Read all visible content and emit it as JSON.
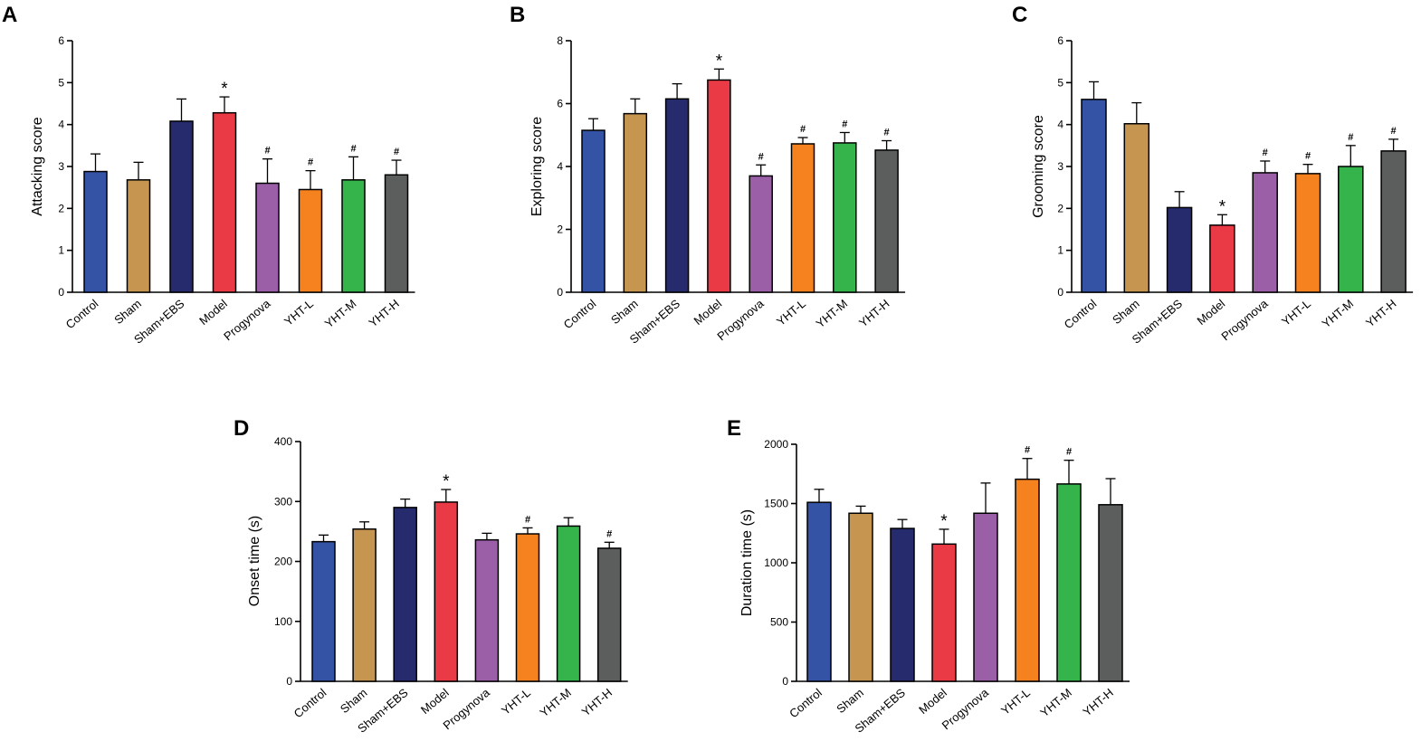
{
  "colors": [
    "#3553a5",
    "#c69650",
    "#262b6d",
    "#ea3a45",
    "#9b5fa8",
    "#f5821f",
    "#34b44b",
    "#5b5e5d"
  ],
  "chart_data": [
    {
      "id": "A",
      "panel_label": "A",
      "type": "bar",
      "ylabel": "Attacking score",
      "categories": [
        "Control",
        "Sham",
        "Sham+EBS",
        "Model",
        "Progynova",
        "YHT-L",
        "YHT-M",
        "YHT-H"
      ],
      "values": [
        2.88,
        2.68,
        4.08,
        4.28,
        2.6,
        2.45,
        2.68,
        2.8
      ],
      "errors": [
        0.42,
        0.42,
        0.53,
        0.38,
        0.58,
        0.45,
        0.55,
        0.35
      ],
      "significance": [
        "",
        "",
        "",
        "*",
        "#",
        "#",
        "#",
        "#"
      ],
      "ylim": [
        0,
        6
      ],
      "yticks": [
        "0",
        "1",
        "2",
        "3",
        "4",
        "5",
        "6"
      ]
    },
    {
      "id": "B",
      "panel_label": "B",
      "type": "bar",
      "ylabel": "Exploring score",
      "categories": [
        "Control",
        "Sham",
        "Sham+EBS",
        "Model",
        "Progynova",
        "YHT-L",
        "YHT-M",
        "YHT-H"
      ],
      "values": [
        5.15,
        5.68,
        6.15,
        6.75,
        3.7,
        4.72,
        4.75,
        4.52
      ],
      "errors": [
        0.37,
        0.47,
        0.48,
        0.35,
        0.35,
        0.2,
        0.33,
        0.3
      ],
      "significance": [
        "",
        "",
        "",
        "*",
        "#",
        "#",
        "#",
        "#"
      ],
      "ylim": [
        0,
        8
      ],
      "yticks": [
        "0",
        "2",
        "4",
        "6",
        "8"
      ]
    },
    {
      "id": "C",
      "panel_label": "C",
      "type": "bar",
      "ylabel": "Grooming score",
      "categories": [
        "Control",
        "Sham",
        "Sham+EBS",
        "Model",
        "Progynova",
        "YHT-L",
        "YHT-M",
        "YHT-H"
      ],
      "values": [
        4.6,
        4.02,
        2.02,
        1.6,
        2.85,
        2.83,
        3.0,
        3.37
      ],
      "errors": [
        0.42,
        0.5,
        0.38,
        0.25,
        0.28,
        0.22,
        0.5,
        0.28
      ],
      "significance": [
        "",
        "",
        "",
        "*",
        "#",
        "#",
        "#",
        "#"
      ],
      "ylim": [
        0,
        6
      ],
      "yticks": [
        "0",
        "1",
        "2",
        "3",
        "4",
        "5",
        "6"
      ]
    },
    {
      "id": "D",
      "panel_label": "D",
      "type": "bar",
      "ylabel": "Onset time (s)",
      "categories": [
        "Control",
        "Sham",
        "Sham+EBS",
        "Model",
        "Progynova",
        "YHT-L",
        "YHT-M",
        "YHT-H"
      ],
      "values": [
        233,
        254,
        290,
        299,
        236,
        246,
        259,
        222
      ],
      "errors": [
        11,
        12,
        14,
        21,
        11,
        10,
        14,
        10
      ],
      "significance": [
        "",
        "",
        "",
        "*",
        "",
        "#",
        "",
        "#"
      ],
      "ylim": [
        0,
        400
      ],
      "yticks": [
        "0",
        "100",
        "200",
        "300",
        "400"
      ]
    },
    {
      "id": "E",
      "panel_label": "E",
      "type": "bar",
      "ylabel": "Duration time (s)",
      "categories": [
        "Control",
        "Sham",
        "Sham+EBS",
        "Model",
        "Progynova",
        "YHT-L",
        "YHT-M",
        "YHT-H"
      ],
      "values": [
        1510,
        1418,
        1290,
        1158,
        1418,
        1705,
        1665,
        1490
      ],
      "errors": [
        110,
        60,
        75,
        125,
        255,
        175,
        200,
        220
      ],
      "significance": [
        "",
        "",
        "",
        "*",
        "",
        "#",
        "#",
        ""
      ],
      "ylim": [
        0,
        2000
      ],
      "yticks": [
        "0",
        "500",
        "1000",
        "1500",
        "2000"
      ]
    }
  ]
}
